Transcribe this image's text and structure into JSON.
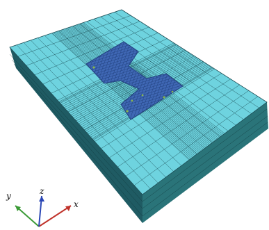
{
  "viewport": {
    "background": "#ffffff",
    "top_face_color": "#6ed3df",
    "side_left_color": "#1f5b63",
    "side_front_color": "#2a7479",
    "mesh_line_color": "#1d4e56",
    "inset_color": "#3f67b4",
    "inset_edge_color": "#22427f",
    "inset_highlight": "#9ccc3a"
  },
  "triad": {
    "x_label": "x",
    "y_label": "y",
    "z_label": "z",
    "x_color": "#c0322a",
    "y_color": "#3a9a35",
    "z_color": "#2b47b5"
  }
}
